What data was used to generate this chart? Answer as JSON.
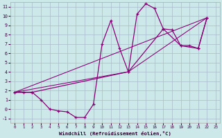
{
  "xlabel": "Windchill (Refroidissement éolien,°C)",
  "bg_color": "#cce8e8",
  "grid_color": "#aabbcc",
  "line_color": "#880077",
  "main_x": [
    0,
    1,
    2,
    3,
    4,
    5,
    6,
    7,
    8,
    9,
    10,
    11,
    12,
    13,
    14,
    15,
    16,
    17,
    18,
    19,
    20,
    21,
    22
  ],
  "main_y": [
    1.8,
    1.8,
    1.8,
    1.0,
    0.0,
    -0.2,
    -0.3,
    -0.9,
    -0.9,
    0.5,
    7.0,
    9.5,
    6.5,
    4.0,
    10.2,
    11.3,
    10.8,
    8.6,
    8.5,
    6.8,
    6.8,
    6.5,
    9.8
  ],
  "line2_x": [
    0,
    2,
    13,
    17,
    19,
    21,
    22
  ],
  "line2_y": [
    1.8,
    1.8,
    4.0,
    8.6,
    6.8,
    6.5,
    9.8
  ],
  "line3_x": [
    0,
    22
  ],
  "line3_y": [
    1.8,
    9.8
  ],
  "line4_x": [
    0,
    13,
    22
  ],
  "line4_y": [
    1.8,
    4.0,
    9.8
  ],
  "xlim": [
    -0.5,
    23.5
  ],
  "ylim": [
    -1.5,
    11.5
  ],
  "xticks": [
    0,
    1,
    2,
    3,
    4,
    5,
    6,
    7,
    8,
    9,
    10,
    11,
    12,
    13,
    14,
    15,
    16,
    17,
    18,
    19,
    20,
    21,
    22,
    23
  ],
  "yticks": [
    -1,
    0,
    1,
    2,
    3,
    4,
    5,
    6,
    7,
    8,
    9,
    10,
    11
  ],
  "tick_label_color": "#440044",
  "axis_label_color": "#330033",
  "spine_color": "#aaaaaa"
}
